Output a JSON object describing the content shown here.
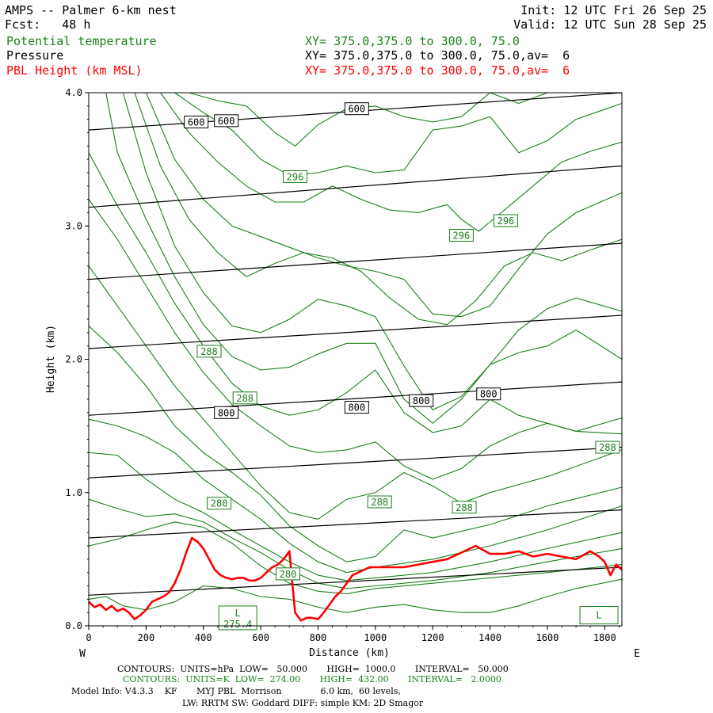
{
  "header": {
    "title": "AMPS -- Palmer 6-km nest",
    "fcst": "Fcst:   48 h",
    "init": "Init: 12 UTC Fri 26 Sep 25",
    "valid": "Valid: 12 UTC Sun 28 Sep 25",
    "fields": [
      {
        "name": "Potential temperature",
        "xy": "XY= 375.0,375.0 to 300.0, 75.0",
        "color": "#1a7f1a"
      },
      {
        "name": "Pressure",
        "xy": "XY= 375.0,375.0 to 300.0, 75.0,av=  6",
        "color": "#000000"
      },
      {
        "name": "PBL Height (km MSL)",
        "xy": "XY= 375.0,375.0 to 300.0, 75.0,av=  6",
        "color": "#ff0000"
      }
    ]
  },
  "chart_data": {
    "type": "line",
    "xlabel": "Distance (km)",
    "ylabel": "Height (km)",
    "xlim": [
      0,
      1860
    ],
    "ylim": [
      0,
      4.0
    ],
    "x_ticks": [
      0,
      200,
      400,
      600,
      800,
      1000,
      1200,
      1400,
      1600,
      1800
    ],
    "y_ticks": [
      0.0,
      1.0,
      2.0,
      3.0,
      4.0
    ],
    "west_label": "W",
    "east_label": "E",
    "pressure_contours": [
      {
        "x": [
          0,
          1860
        ],
        "y": [
          3.72,
          4.05
        ]
      },
      {
        "x": [
          0,
          1860
        ],
        "y": [
          3.14,
          3.45
        ]
      },
      {
        "x": [
          0,
          1860
        ],
        "y": [
          2.6,
          2.87
        ]
      },
      {
        "x": [
          0,
          1860
        ],
        "y": [
          2.08,
          2.33
        ]
      },
      {
        "x": [
          0,
          1860
        ],
        "y": [
          1.58,
          1.83
        ]
      },
      {
        "x": [
          0,
          1860
        ],
        "y": [
          1.11,
          1.34
        ]
      },
      {
        "x": [
          0,
          1860
        ],
        "y": [
          0.66,
          0.87
        ]
      },
      {
        "x": [
          0,
          1860
        ],
        "y": [
          0.23,
          0.44
        ]
      }
    ],
    "pressure_labels": [
      {
        "text": "600",
        "x": 375,
        "y": 3.78
      },
      {
        "text": "600",
        "x": 480,
        "y": 3.79
      },
      {
        "text": "600",
        "x": 935,
        "y": 3.88
      },
      {
        "text": "800",
        "x": 480,
        "y": 1.6
      },
      {
        "text": "800",
        "x": 935,
        "y": 1.64
      },
      {
        "text": "800",
        "x": 1160,
        "y": 1.69
      },
      {
        "text": "800",
        "x": 1395,
        "y": 1.74
      }
    ],
    "theta_contours": [
      {
        "x": [
          0,
          60,
          120,
          200,
          300,
          400,
          500,
          600,
          700,
          800,
          900,
          1000,
          1100,
          1200,
          1300,
          1400,
          1500,
          1600,
          1700,
          1860
        ],
        "y": [
          0.2,
          0.22,
          0.15,
          0.12,
          0.18,
          0.3,
          0.28,
          0.22,
          0.2,
          0.14,
          0.1,
          0.14,
          0.16,
          0.12,
          0.1,
          0.1,
          0.15,
          0.22,
          0.28,
          0.35
        ]
      },
      {
        "x": [
          0,
          100,
          200,
          300,
          400,
          500,
          600,
          700,
          800,
          900,
          1000,
          1200,
          1400,
          1600,
          1860
        ],
        "y": [
          0.6,
          0.65,
          0.72,
          0.78,
          0.74,
          0.62,
          0.45,
          0.32,
          0.26,
          0.24,
          0.28,
          0.32,
          0.36,
          0.4,
          0.46
        ]
      },
      {
        "x": [
          0,
          100,
          200,
          300,
          400,
          500,
          600,
          700,
          800,
          900,
          1000,
          1200,
          1400,
          1600,
          1860
        ],
        "y": [
          0.95,
          0.88,
          0.82,
          0.84,
          0.78,
          0.66,
          0.55,
          0.42,
          0.32,
          0.28,
          0.3,
          0.34,
          0.4,
          0.48,
          0.58
        ]
      },
      {
        "x": [
          0,
          100,
          200,
          300,
          400,
          500,
          600,
          700,
          800,
          900,
          1000,
          1200,
          1400,
          1600,
          1860
        ],
        "y": [
          1.3,
          1.28,
          1.1,
          0.95,
          0.85,
          0.72,
          0.6,
          0.48,
          0.38,
          0.34,
          0.36,
          0.4,
          0.48,
          0.58,
          0.7
        ]
      },
      {
        "x": [
          0,
          100,
          200,
          300,
          400,
          500,
          600,
          700,
          800,
          900,
          1000,
          1200,
          1400,
          1600,
          1860
        ],
        "y": [
          1.55,
          1.5,
          1.42,
          1.3,
          1.1,
          0.95,
          0.8,
          0.62,
          0.48,
          0.4,
          0.44,
          0.5,
          0.6,
          0.72,
          0.9
        ]
      },
      {
        "x": [
          0,
          100,
          200,
          300,
          400,
          500,
          600,
          700,
          800,
          900,
          1000,
          1100,
          1200,
          1400,
          1600,
          1860
        ],
        "y": [
          2.25,
          2.05,
          1.8,
          1.5,
          1.3,
          1.15,
          0.98,
          0.75,
          0.6,
          0.48,
          0.52,
          0.72,
          0.66,
          0.76,
          0.9,
          1.04
        ]
      },
      {
        "x": [
          0,
          100,
          200,
          300,
          400,
          500,
          600,
          700,
          800,
          900,
          1000,
          1100,
          1200,
          1300,
          1400,
          1600,
          1860
        ],
        "y": [
          2.7,
          2.4,
          2.1,
          1.8,
          1.55,
          1.3,
          1.05,
          0.85,
          0.8,
          0.95,
          1.0,
          1.15,
          1.05,
          0.92,
          1.0,
          1.12,
          1.32
        ]
      },
      {
        "x": [
          0,
          100,
          200,
          300,
          400,
          500,
          600,
          700,
          800,
          900,
          1000,
          1100,
          1200,
          1300,
          1400,
          1500,
          1600,
          1700,
          1860
        ],
        "y": [
          3.2,
          2.9,
          2.55,
          2.2,
          1.9,
          1.66,
          1.5,
          1.35,
          1.3,
          1.32,
          1.38,
          1.2,
          1.1,
          1.18,
          1.35,
          1.45,
          1.52,
          1.46,
          1.44
        ]
      },
      {
        "x": [
          0,
          100,
          200,
          300,
          400,
          500,
          600,
          700,
          800,
          900,
          1000,
          1100,
          1200,
          1300,
          1400,
          1500,
          1600,
          1700,
          1860
        ],
        "y": [
          3.55,
          3.15,
          2.8,
          2.42,
          2.1,
          1.82,
          1.65,
          1.58,
          1.62,
          1.75,
          1.92,
          1.6,
          1.45,
          1.5,
          1.7,
          1.58,
          1.52,
          1.46,
          1.56
        ]
      },
      {
        "x": [
          60,
          100,
          200,
          300,
          400,
          500,
          600,
          700,
          800,
          900,
          1000,
          1100,
          1200,
          1300,
          1400,
          1500,
          1600,
          1700,
          1860
        ],
        "y": [
          4.0,
          3.55,
          3.05,
          2.62,
          2.26,
          2.02,
          1.92,
          1.94,
          2.04,
          2.12,
          2.12,
          1.7,
          1.52,
          1.7,
          1.96,
          2.05,
          2.1,
          2.22,
          2.0
        ]
      },
      {
        "x": [
          120,
          200,
          300,
          400,
          500,
          600,
          700,
          800,
          900,
          1000,
          1100,
          1200,
          1300,
          1400,
          1500,
          1600,
          1700,
          1860
        ],
        "y": [
          4.0,
          3.4,
          2.85,
          2.5,
          2.25,
          2.2,
          2.3,
          2.45,
          2.4,
          2.32,
          1.95,
          1.62,
          1.72,
          1.96,
          2.22,
          2.38,
          2.46,
          2.36
        ]
      },
      {
        "x": [
          160,
          250,
          350,
          450,
          550,
          650,
          750,
          850,
          950,
          1050,
          1150,
          1250,
          1350,
          1450,
          1550,
          1650,
          1750,
          1860
        ],
        "y": [
          4.0,
          3.45,
          3.05,
          2.8,
          2.62,
          2.72,
          2.8,
          2.76,
          2.66,
          2.46,
          2.3,
          2.26,
          2.44,
          2.7,
          2.8,
          2.74,
          2.82,
          2.9
        ]
      },
      {
        "x": [
          200,
          300,
          400,
          500,
          600,
          700,
          800,
          900,
          1000,
          1100,
          1200,
          1300,
          1400,
          1500,
          1600,
          1700,
          1860
        ],
        "y": [
          4.0,
          3.5,
          3.2,
          3.0,
          2.92,
          2.84,
          2.76,
          2.7,
          2.66,
          2.6,
          2.34,
          2.32,
          2.4,
          2.68,
          2.94,
          3.1,
          3.25
        ]
      },
      {
        "x": [
          250,
          350,
          450,
          550,
          650,
          750,
          850,
          950,
          1050,
          1150,
          1250,
          1300,
          1360,
          1450,
          1550,
          1650,
          1750,
          1860
        ],
        "y": [
          4.0,
          3.7,
          3.48,
          3.3,
          3.18,
          3.18,
          3.3,
          3.2,
          3.12,
          3.1,
          3.16,
          3.05,
          2.96,
          3.12,
          3.3,
          3.48,
          3.56,
          3.63
        ]
      },
      {
        "x": [
          300,
          400,
          500,
          600,
          700,
          800,
          900,
          1000,
          1100,
          1200,
          1300,
          1400,
          1500,
          1600,
          1700,
          1860
        ],
        "y": [
          4.0,
          3.85,
          3.72,
          3.5,
          3.38,
          3.4,
          3.45,
          3.4,
          3.42,
          3.72,
          3.75,
          3.82,
          3.55,
          3.64,
          3.8,
          3.92
        ]
      },
      {
        "x": [
          350,
          450,
          550,
          650,
          720,
          800,
          900,
          1000,
          1100,
          1200,
          1300,
          1400,
          1500,
          1600,
          1700,
          1800,
          1860
        ],
        "y": [
          4.0,
          3.94,
          3.9,
          3.7,
          3.6,
          3.76,
          3.88,
          3.9,
          3.82,
          3.78,
          3.82,
          4.0,
          3.92,
          4.0,
          4.05,
          4.02,
          4.0
        ]
      }
    ],
    "theta_labels": [
      {
        "text": "296",
        "x": 720,
        "y": 3.37
      },
      {
        "text": "296",
        "x": 1300,
        "y": 2.93
      },
      {
        "text": "296",
        "x": 1455,
        "y": 3.04
      },
      {
        "text": "288",
        "x": 420,
        "y": 2.06
      },
      {
        "text": "288",
        "x": 545,
        "y": 1.71
      },
      {
        "text": "288",
        "x": 1015,
        "y": 0.93
      },
      {
        "text": "288",
        "x": 1310,
        "y": 0.89
      },
      {
        "text": "288",
        "x": 1810,
        "y": 1.34
      },
      {
        "text": "280",
        "x": 455,
        "y": 0.92
      },
      {
        "text": "280",
        "x": 695,
        "y": 0.39
      }
    ],
    "low_markers": [
      {
        "text": "L",
        "value": "275.4",
        "x": 520,
        "y": 0.06
      },
      {
        "text": "L",
        "value": "",
        "x": 1780,
        "y": 0.08
      }
    ],
    "pbl_height": {
      "name": "PBL Height (km MSL)",
      "color": "#ff0000",
      "x": [
        0,
        20,
        40,
        60,
        80,
        100,
        120,
        140,
        160,
        180,
        200,
        220,
        240,
        260,
        280,
        300,
        320,
        340,
        360,
        380,
        400,
        420,
        440,
        460,
        480,
        500,
        520,
        540,
        560,
        580,
        600,
        620,
        640,
        660,
        680,
        700,
        720,
        740,
        760,
        780,
        800,
        820,
        840,
        860,
        880,
        900,
        920,
        940,
        960,
        980,
        1000,
        1050,
        1100,
        1150,
        1200,
        1250,
        1300,
        1350,
        1400,
        1450,
        1500,
        1550,
        1600,
        1650,
        1700,
        1750,
        1780,
        1800,
        1820,
        1840,
        1860
      ],
      "y": [
        0.18,
        0.14,
        0.16,
        0.12,
        0.15,
        0.11,
        0.13,
        0.1,
        0.05,
        0.08,
        0.12,
        0.18,
        0.2,
        0.22,
        0.25,
        0.32,
        0.42,
        0.55,
        0.66,
        0.63,
        0.58,
        0.5,
        0.42,
        0.38,
        0.36,
        0.35,
        0.36,
        0.36,
        0.34,
        0.34,
        0.36,
        0.4,
        0.44,
        0.46,
        0.5,
        0.56,
        0.1,
        0.04,
        0.06,
        0.06,
        0.05,
        0.1,
        0.16,
        0.22,
        0.26,
        0.32,
        0.38,
        0.4,
        0.42,
        0.44,
        0.44,
        0.44,
        0.44,
        0.46,
        0.48,
        0.5,
        0.55,
        0.6,
        0.54,
        0.54,
        0.56,
        0.52,
        0.54,
        0.52,
        0.5,
        0.56,
        0.52,
        0.48,
        0.38,
        0.46,
        0.42
      ]
    }
  },
  "footer": {
    "line1": "CONTOURS:  UNITS=hPa  LOW=   50.000       HIGH=  1000.0       INTERVAL=   50.000",
    "line2": "CONTOURS:  UNITS=K  LOW=  274.00       HIGH=  432.00       INTERVAL=   2.0000",
    "line3": "Model Info: V4.3.3    KF       MYJ PBL  Morrison              6.0 km,  60 levels,",
    "line4": "LW: RRTM SW: Goddard DIFF: simple KM: 2D Smagor"
  }
}
